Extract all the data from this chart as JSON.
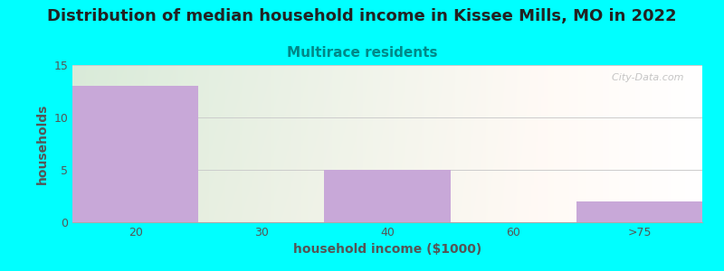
{
  "title": "Distribution of median household income in Kissee Mills, MO in 2022",
  "subtitle": "Multirace residents",
  "categories": [
    "20",
    "30",
    "40",
    "60",
    ">75"
  ],
  "values": [
    13,
    0,
    5,
    0,
    2
  ],
  "bar_color": "#c8a8d8",
  "background_color": "#00FFFF",
  "plot_bg_colors": [
    "#d8efd0",
    "#f5fbf2",
    "#ffffff"
  ],
  "xlabel": "household income ($1000)",
  "ylabel": "households",
  "ylim": [
    0,
    15
  ],
  "yticks": [
    0,
    5,
    10,
    15
  ],
  "title_fontsize": 13,
  "subtitle_fontsize": 11,
  "subtitle_color": "#008888",
  "title_color": "#222222",
  "axis_label_color": "#555555",
  "tick_color": "#555555",
  "grid_color": "#cccccc",
  "watermark": "  City-Data.com"
}
